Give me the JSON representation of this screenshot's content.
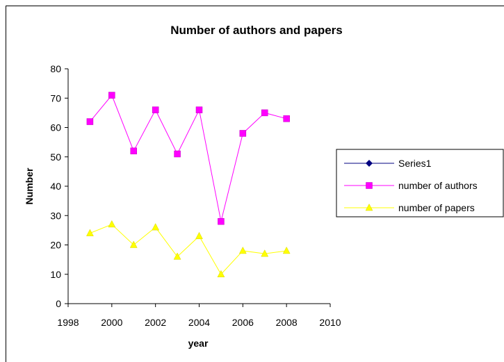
{
  "chart_data": {
    "type": "line",
    "title": "Number of authors and papers",
    "xlabel": "year",
    "ylabel": "Number",
    "xlim": [
      1998,
      2010
    ],
    "ylim": [
      0,
      80
    ],
    "xticks": [
      1998,
      2000,
      2002,
      2004,
      2006,
      2008,
      2010
    ],
    "yticks": [
      0,
      10,
      20,
      30,
      40,
      50,
      60,
      70,
      80
    ],
    "grid": false,
    "legend_position": "right",
    "series": [
      {
        "name": "Series1",
        "color": "#000080",
        "marker": "diamond",
        "x": [],
        "y": []
      },
      {
        "name": "number of authors",
        "color": "#ff00ff",
        "marker": "square",
        "x": [
          1999,
          2000,
          2001,
          2002,
          2003,
          2004,
          2005,
          2006,
          2007,
          2008
        ],
        "y": [
          62,
          71,
          52,
          66,
          51,
          66,
          28,
          58,
          65,
          63
        ]
      },
      {
        "name": "number of papers",
        "color": "#ffff00",
        "marker": "triangle",
        "x": [
          1999,
          2000,
          2001,
          2002,
          2003,
          2004,
          2005,
          2006,
          2007,
          2008
        ],
        "y": [
          24,
          27,
          20,
          26,
          16,
          23,
          10,
          18,
          17,
          18
        ]
      }
    ]
  }
}
